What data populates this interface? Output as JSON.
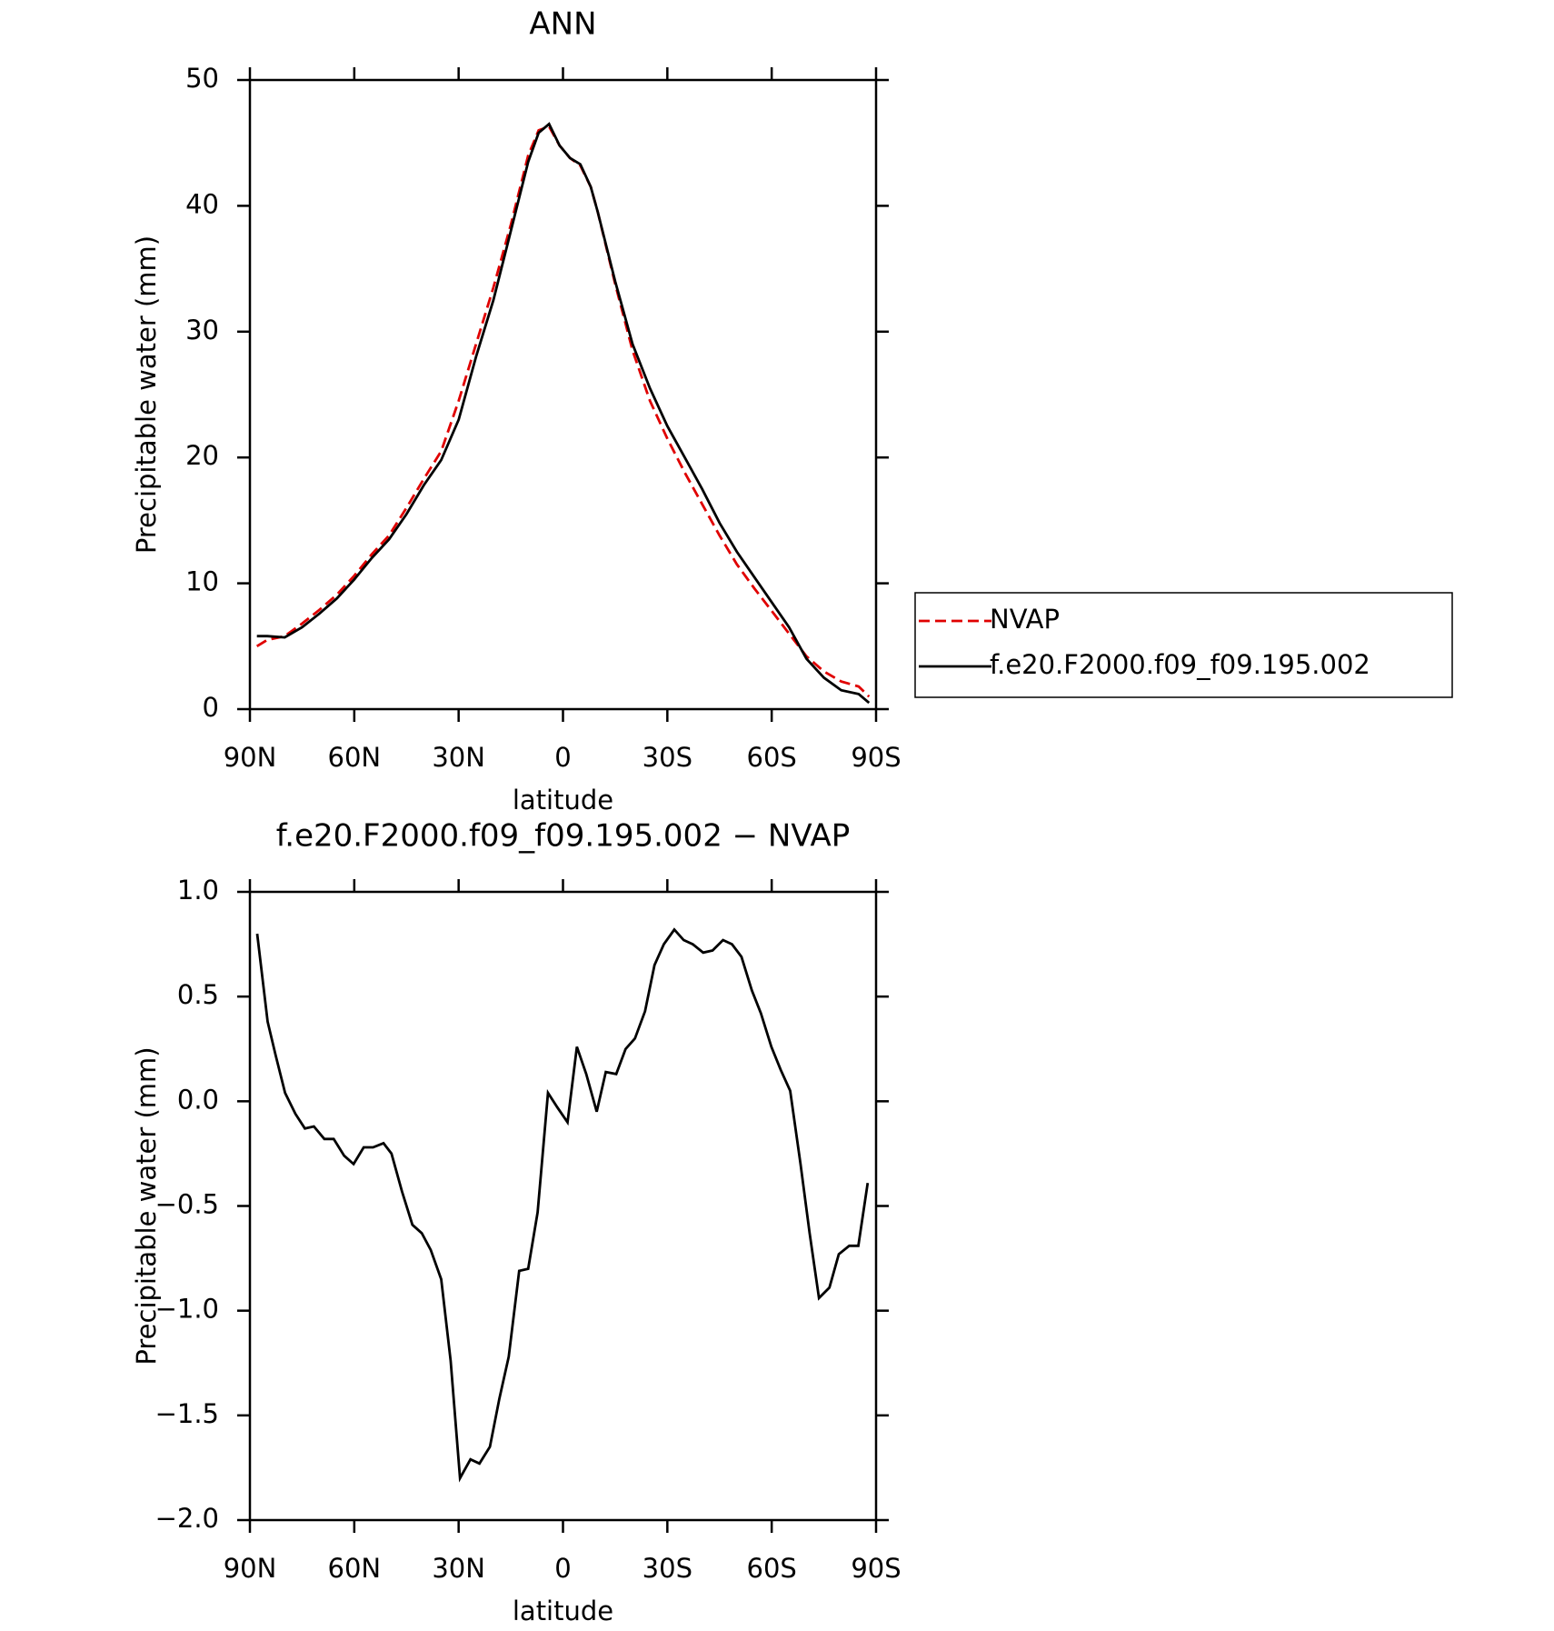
{
  "chart_data": [
    {
      "type": "line",
      "title": "ANN",
      "xlabel": "latitude",
      "ylabel": "Precipitable water (mm)",
      "x": [
        88,
        85,
        80,
        75,
        70,
        65,
        60,
        55,
        50,
        45,
        40,
        35,
        30,
        25,
        20,
        15,
        10,
        7,
        4,
        1,
        -2,
        -5,
        -8,
        -10,
        -15,
        -20,
        -25,
        -30,
        -35,
        -40,
        -45,
        -50,
        -55,
        -60,
        -65,
        -70,
        -75,
        -80,
        -85,
        -88
      ],
      "series": [
        {
          "name": "NVAP",
          "color": "#e00000",
          "dashed": true,
          "values": [
            5.0,
            5.5,
            5.8,
            6.8,
            7.9,
            9.1,
            10.6,
            12.3,
            13.8,
            16.0,
            18.3,
            20.5,
            24.5,
            29.0,
            33.5,
            38.5,
            44.0,
            46.0,
            46.3,
            44.8,
            43.8,
            43.2,
            41.5,
            39.5,
            33.8,
            28.5,
            24.5,
            21.5,
            18.8,
            16.3,
            13.8,
            11.5,
            9.6,
            7.8,
            6.0,
            4.2,
            3.0,
            2.2,
            1.8,
            1.0
          ]
        },
        {
          "name": "f.e20.F2000.f09_f09.195.002",
          "color": "#000000",
          "dashed": false,
          "values": [
            5.8,
            5.8,
            5.7,
            6.5,
            7.6,
            8.8,
            10.3,
            12.0,
            13.5,
            15.5,
            17.8,
            19.8,
            23.0,
            28.0,
            32.5,
            38.0,
            43.5,
            45.8,
            46.5,
            44.8,
            43.8,
            43.3,
            41.5,
            39.5,
            34.0,
            29.0,
            25.5,
            22.5,
            20.0,
            17.5,
            14.8,
            12.5,
            10.5,
            8.5,
            6.5,
            4.0,
            2.5,
            1.5,
            1.2,
            0.5
          ]
        }
      ],
      "xlim": [
        90,
        -90
      ],
      "xticks": [
        {
          "value": 90,
          "label": "90N"
        },
        {
          "value": 60,
          "label": "60N"
        },
        {
          "value": 30,
          "label": "30N"
        },
        0,
        {
          "value": -30,
          "label": "30S"
        },
        {
          "value": -60,
          "label": "60S"
        },
        {
          "value": -90,
          "label": "90S"
        }
      ],
      "ylim": [
        0,
        50
      ],
      "yticks": [
        0,
        10,
        20,
        30,
        40,
        50
      ],
      "legend": "right"
    },
    {
      "type": "line",
      "title": "f.e20.F2000.f09_f09.195.002 − NVAP",
      "xlabel": "latitude",
      "ylabel": "Precipitable water (mm)",
      "x": [
        87.9,
        84.9,
        82.6,
        79.9,
        76.9,
        74.2,
        71.6,
        68.6,
        65.9,
        62.9,
        60.2,
        57.3,
        54.6,
        51.6,
        49.3,
        46.3,
        43.3,
        40.6,
        38.0,
        35.0,
        32.3,
        29.6,
        26.6,
        24.0,
        21.0,
        18.3,
        15.6,
        12.6,
        10.0,
        7.3,
        4.3,
        1.6,
        -1.3,
        -4.0,
        -6.7,
        -9.7,
        -12.3,
        -15.3,
        -18.0,
        -20.7,
        -23.6,
        -26.3,
        -29.0,
        -32.0,
        -34.7,
        -37.3,
        -40.3,
        -43.0,
        -46.0,
        -48.6,
        -51.3,
        -54.3,
        -56.9,
        -59.9,
        -62.6,
        -65.3,
        -68.3,
        -70.9,
        -73.6,
        -76.6,
        -79.3,
        -82.3,
        -84.9,
        -87.6
      ],
      "series": [
        {
          "color": "#000000",
          "dashed": false,
          "values": [
            0.8,
            0.38,
            0.22,
            0.04,
            -0.06,
            -0.13,
            -0.12,
            -0.18,
            -0.18,
            -0.26,
            -0.3,
            -0.22,
            -0.22,
            -0.2,
            -0.25,
            -0.43,
            -0.59,
            -0.63,
            -0.71,
            -0.85,
            -1.24,
            -1.8,
            -1.71,
            -1.73,
            -1.65,
            -1.42,
            -1.22,
            -0.81,
            -0.8,
            -0.53,
            0.04,
            -0.03,
            -0.1,
            0.26,
            0.13,
            -0.05,
            0.14,
            0.13,
            0.25,
            0.3,
            0.43,
            0.65,
            0.75,
            0.82,
            0.77,
            0.75,
            0.71,
            0.72,
            0.77,
            0.75,
            0.69,
            0.53,
            0.42,
            0.26,
            0.15,
            0.05,
            -0.3,
            -0.63,
            -0.94,
            -0.89,
            -0.73,
            -0.69,
            -0.69,
            -0.39
          ]
        }
      ],
      "xlim": [
        90,
        -90
      ],
      "xticks": [
        {
          "value": 90,
          "label": "90N"
        },
        {
          "value": 60,
          "label": "60N"
        },
        {
          "value": 30,
          "label": "30N"
        },
        0,
        {
          "value": -30,
          "label": "30S"
        },
        {
          "value": -60,
          "label": "60S"
        },
        {
          "value": -90,
          "label": "90S"
        }
      ],
      "ylim": [
        -2.0,
        1.0
      ],
      "yticks": [
        {
          "value": -2.0,
          "label": "−2.0"
        },
        {
          "value": -1.5,
          "label": "−1.5"
        },
        {
          "value": -1.0,
          "label": "−1.0"
        },
        {
          "value": -0.5,
          "label": "−0.5"
        },
        {
          "value": 0.0,
          "label": "0.0"
        },
        {
          "value": 0.5,
          "label": "0.5"
        },
        {
          "value": 1.0,
          "label": "1.0"
        }
      ]
    }
  ]
}
